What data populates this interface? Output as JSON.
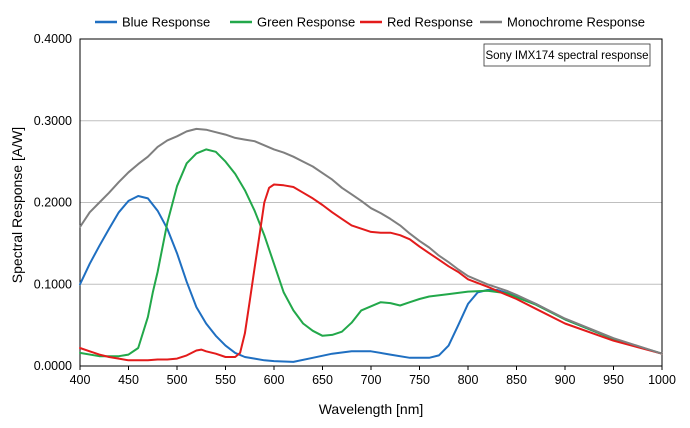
{
  "chart_data": {
    "type": "line",
    "title": "",
    "xlabel": "Wavelength [nm]",
    "ylabel": "Spectral Response [A/W]",
    "xlim": [
      400,
      1000
    ],
    "ylim": [
      0,
      0.4
    ],
    "x_ticks": [
      "400",
      "450",
      "500",
      "550",
      "600",
      "650",
      "700",
      "750",
      "800",
      "850",
      "900",
      "950",
      "1000"
    ],
    "y_ticks": [
      "0.0000",
      "0.1000",
      "0.2000",
      "0.3000",
      "0.4000"
    ],
    "grid": "horizontal",
    "legend_position": "top",
    "annotation": "Sony IMX174 spectral response",
    "series": [
      {
        "name": "Blue Response",
        "color": "#1f6fc1",
        "points": [
          [
            400,
            0.1
          ],
          [
            410,
            0.125
          ],
          [
            420,
            0.147
          ],
          [
            430,
            0.168
          ],
          [
            440,
            0.188
          ],
          [
            450,
            0.202
          ],
          [
            460,
            0.208
          ],
          [
            470,
            0.205
          ],
          [
            480,
            0.19
          ],
          [
            490,
            0.168
          ],
          [
            500,
            0.138
          ],
          [
            510,
            0.103
          ],
          [
            520,
            0.072
          ],
          [
            530,
            0.052
          ],
          [
            540,
            0.037
          ],
          [
            550,
            0.025
          ],
          [
            560,
            0.016
          ],
          [
            570,
            0.011
          ],
          [
            580,
            0.009
          ],
          [
            590,
            0.007
          ],
          [
            600,
            0.006
          ],
          [
            620,
            0.005
          ],
          [
            640,
            0.01
          ],
          [
            660,
            0.015
          ],
          [
            680,
            0.018
          ],
          [
            700,
            0.018
          ],
          [
            720,
            0.014
          ],
          [
            740,
            0.01
          ],
          [
            760,
            0.01
          ],
          [
            770,
            0.013
          ],
          [
            780,
            0.025
          ],
          [
            790,
            0.05
          ],
          [
            800,
            0.076
          ],
          [
            810,
            0.09
          ],
          [
            820,
            0.093
          ],
          [
            830,
            0.093
          ],
          [
            850,
            0.086
          ],
          [
            870,
            0.076
          ],
          [
            900,
            0.057
          ],
          [
            950,
            0.033
          ],
          [
            1000,
            0.015
          ]
        ]
      },
      {
        "name": "Green Response",
        "color": "#22a84a",
        "points": [
          [
            400,
            0.016
          ],
          [
            420,
            0.012
          ],
          [
            440,
            0.012
          ],
          [
            450,
            0.014
          ],
          [
            460,
            0.022
          ],
          [
            470,
            0.06
          ],
          [
            475,
            0.09
          ],
          [
            480,
            0.115
          ],
          [
            490,
            0.175
          ],
          [
            500,
            0.22
          ],
          [
            510,
            0.248
          ],
          [
            520,
            0.26
          ],
          [
            530,
            0.265
          ],
          [
            540,
            0.262
          ],
          [
            550,
            0.25
          ],
          [
            560,
            0.235
          ],
          [
            570,
            0.215
          ],
          [
            580,
            0.19
          ],
          [
            590,
            0.16
          ],
          [
            600,
            0.125
          ],
          [
            610,
            0.09
          ],
          [
            620,
            0.068
          ],
          [
            630,
            0.052
          ],
          [
            640,
            0.043
          ],
          [
            650,
            0.037
          ],
          [
            660,
            0.038
          ],
          [
            670,
            0.042
          ],
          [
            680,
            0.053
          ],
          [
            690,
            0.068
          ],
          [
            700,
            0.073
          ],
          [
            710,
            0.078
          ],
          [
            720,
            0.077
          ],
          [
            730,
            0.074
          ],
          [
            740,
            0.078
          ],
          [
            750,
            0.082
          ],
          [
            760,
            0.085
          ],
          [
            780,
            0.088
          ],
          [
            800,
            0.091
          ],
          [
            820,
            0.092
          ],
          [
            840,
            0.089
          ],
          [
            850,
            0.084
          ],
          [
            870,
            0.075
          ],
          [
            900,
            0.057
          ],
          [
            950,
            0.033
          ],
          [
            1000,
            0.015
          ]
        ]
      },
      {
        "name": "Red Response",
        "color": "#e31b1b",
        "points": [
          [
            400,
            0.022
          ],
          [
            410,
            0.018
          ],
          [
            420,
            0.014
          ],
          [
            430,
            0.011
          ],
          [
            440,
            0.009
          ],
          [
            450,
            0.007
          ],
          [
            460,
            0.007
          ],
          [
            470,
            0.007
          ],
          [
            480,
            0.008
          ],
          [
            490,
            0.008
          ],
          [
            500,
            0.009
          ],
          [
            510,
            0.013
          ],
          [
            520,
            0.019
          ],
          [
            525,
            0.02
          ],
          [
            530,
            0.018
          ],
          [
            540,
            0.015
          ],
          [
            550,
            0.011
          ],
          [
            560,
            0.011
          ],
          [
            565,
            0.016
          ],
          [
            570,
            0.04
          ],
          [
            575,
            0.08
          ],
          [
            580,
            0.12
          ],
          [
            585,
            0.16
          ],
          [
            590,
            0.2
          ],
          [
            595,
            0.218
          ],
          [
            600,
            0.222
          ],
          [
            610,
            0.221
          ],
          [
            620,
            0.219
          ],
          [
            630,
            0.212
          ],
          [
            640,
            0.205
          ],
          [
            650,
            0.197
          ],
          [
            660,
            0.188
          ],
          [
            670,
            0.18
          ],
          [
            680,
            0.172
          ],
          [
            690,
            0.168
          ],
          [
            700,
            0.164
          ],
          [
            710,
            0.163
          ],
          [
            720,
            0.163
          ],
          [
            730,
            0.16
          ],
          [
            740,
            0.155
          ],
          [
            750,
            0.146
          ],
          [
            760,
            0.138
          ],
          [
            770,
            0.13
          ],
          [
            780,
            0.122
          ],
          [
            790,
            0.115
          ],
          [
            800,
            0.106
          ],
          [
            820,
            0.097
          ],
          [
            840,
            0.087
          ],
          [
            850,
            0.082
          ],
          [
            870,
            0.07
          ],
          [
            900,
            0.052
          ],
          [
            950,
            0.031
          ],
          [
            1000,
            0.015
          ]
        ]
      },
      {
        "name": "Monochrome Response",
        "color": "#7f7f7f",
        "points": [
          [
            400,
            0.17
          ],
          [
            410,
            0.188
          ],
          [
            420,
            0.2
          ],
          [
            430,
            0.212
          ],
          [
            440,
            0.225
          ],
          [
            450,
            0.237
          ],
          [
            460,
            0.247
          ],
          [
            470,
            0.256
          ],
          [
            480,
            0.268
          ],
          [
            490,
            0.276
          ],
          [
            500,
            0.281
          ],
          [
            510,
            0.287
          ],
          [
            520,
            0.29
          ],
          [
            530,
            0.289
          ],
          [
            540,
            0.286
          ],
          [
            550,
            0.283
          ],
          [
            560,
            0.279
          ],
          [
            570,
            0.277
          ],
          [
            580,
            0.275
          ],
          [
            590,
            0.27
          ],
          [
            600,
            0.265
          ],
          [
            610,
            0.261
          ],
          [
            620,
            0.256
          ],
          [
            630,
            0.25
          ],
          [
            640,
            0.244
          ],
          [
            650,
            0.236
          ],
          [
            660,
            0.228
          ],
          [
            670,
            0.218
          ],
          [
            680,
            0.21
          ],
          [
            690,
            0.202
          ],
          [
            700,
            0.193
          ],
          [
            710,
            0.187
          ],
          [
            720,
            0.18
          ],
          [
            730,
            0.172
          ],
          [
            740,
            0.162
          ],
          [
            750,
            0.153
          ],
          [
            760,
            0.145
          ],
          [
            770,
            0.135
          ],
          [
            780,
            0.127
          ],
          [
            790,
            0.118
          ],
          [
            800,
            0.11
          ],
          [
            820,
            0.1
          ],
          [
            840,
            0.092
          ],
          [
            850,
            0.087
          ],
          [
            870,
            0.076
          ],
          [
            900,
            0.058
          ],
          [
            950,
            0.034
          ],
          [
            1000,
            0.015
          ]
        ]
      }
    ]
  }
}
